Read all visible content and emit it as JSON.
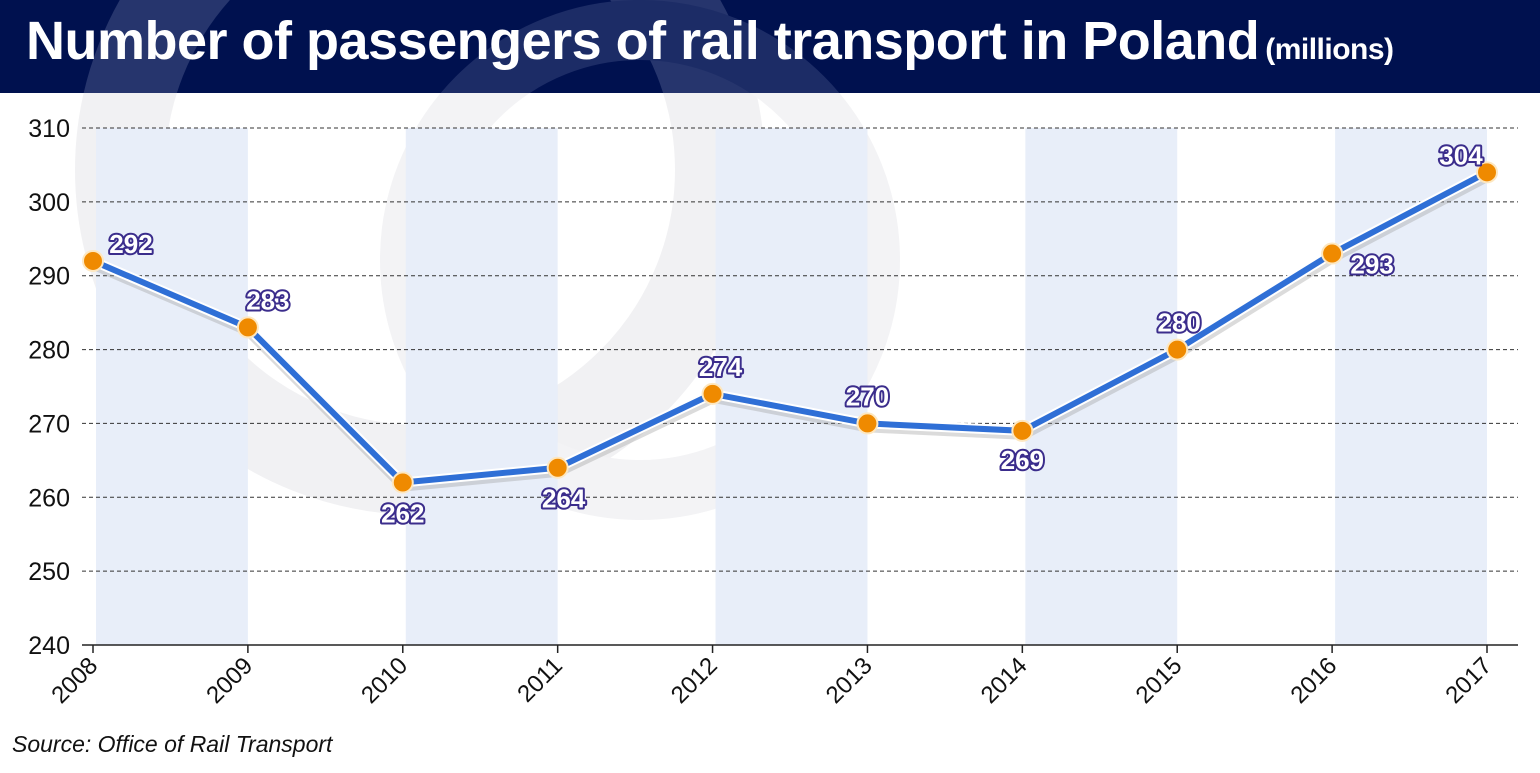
{
  "chart_data": {
    "type": "line",
    "title": "Number of passengers of rail transport in Poland",
    "subtitle": "(millions)",
    "categories": [
      "2008",
      "2009",
      "2010",
      "2011",
      "2012",
      "2013",
      "2014",
      "2015",
      "2016",
      "2017"
    ],
    "series": [
      {
        "values": [
          292,
          283,
          262,
          264,
          274,
          270,
          269,
          280,
          293,
          304
        ]
      }
    ],
    "data_labels": [
      "292",
      "283",
      "262",
      "264",
      "274",
      "270",
      "269",
      "280",
      "293",
      "304"
    ],
    "yticks": [
      "240",
      "250",
      "260",
      "270",
      "280",
      "290",
      "300",
      "310"
    ],
    "ylim": [
      240,
      310
    ],
    "grid": "horizontal dashed",
    "colors": {
      "line": "#2f6fd6",
      "marker": "#ef8a00",
      "band": "#e8eef9",
      "header": "#00114f",
      "label_outline": "#3b2d8c"
    },
    "source": "Source: Office of Rail Transport"
  }
}
